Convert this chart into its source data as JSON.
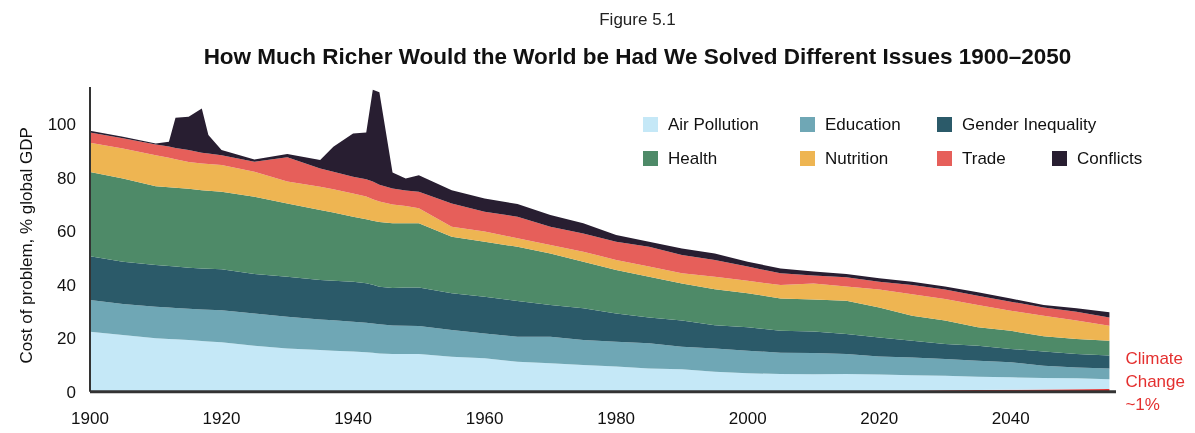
{
  "chart_data": {
    "type": "area",
    "stacked": true,
    "subtitle": "Figure 5.1",
    "title": "How Much Richer Would the World be Had We Solved Different Issues 1900–2050",
    "ylabel": "Cost of problem, % global GDP",
    "x": [
      1900,
      1905,
      1910,
      1912,
      1913,
      1915,
      1917,
      1918,
      1920,
      1925,
      1930,
      1935,
      1937,
      1940,
      1942,
      1943,
      1944,
      1946,
      1948,
      1950,
      1955,
      1960,
      1965,
      1970,
      1975,
      1980,
      1985,
      1990,
      1995,
      2000,
      2005,
      2010,
      2015,
      2020,
      2025,
      2030,
      2035,
      2040,
      2045,
      2050,
      2055
    ],
    "series": [
      {
        "color": "#e4302f",
        "values": [
          0,
          0,
          0,
          0,
          0,
          0,
          0,
          0,
          0,
          0,
          0,
          0,
          0,
          0,
          0,
          0,
          0,
          0,
          0,
          0,
          0,
          0,
          0,
          0,
          0,
          0,
          0,
          0,
          0,
          0,
          0,
          0,
          0.2,
          0.3,
          0.4,
          0.5,
          0.6,
          0.7,
          0.8,
          0.9,
          1.0
        ]
      },
      {
        "name": "Air Pollution",
        "color": "#c5e8f7",
        "values": [
          22.4,
          21.2,
          20.0,
          19.7,
          19.6,
          19.3,
          19.0,
          18.8,
          18.5,
          17.2,
          16.2,
          15.6,
          15.3,
          15.0,
          14.8,
          14.6,
          14.3,
          14.1,
          14.1,
          14.1,
          13.1,
          12.5,
          11.2,
          10.6,
          10.0,
          9.4,
          8.7,
          8.4,
          7.5,
          6.9,
          6.6,
          6.5,
          6.4,
          6.1,
          5.8,
          5.5,
          5.0,
          4.7,
          4.3,
          4.1,
          3.7
        ]
      },
      {
        "name": "Education",
        "color": "#6fa7b5",
        "values": [
          11.9,
          11.6,
          11.8,
          11.8,
          11.7,
          11.7,
          11.8,
          11.9,
          12.0,
          12.1,
          11.8,
          11.4,
          11.4,
          11.2,
          11.0,
          10.9,
          10.9,
          10.7,
          10.6,
          10.5,
          10.0,
          9.3,
          9.4,
          10.0,
          9.3,
          9.3,
          9.4,
          8.4,
          8.7,
          8.4,
          8.0,
          8.0,
          7.5,
          6.8,
          6.6,
          6.2,
          6.0,
          5.6,
          4.6,
          4.1,
          4.0
        ]
      },
      {
        "name": "Gender Inequality",
        "color": "#2b5a69",
        "values": [
          16.4,
          15.8,
          15.6,
          15.5,
          15.5,
          15.4,
          15.3,
          15.3,
          15.3,
          14.7,
          15.0,
          14.8,
          14.8,
          14.9,
          14.8,
          14.5,
          14.1,
          14.0,
          14.3,
          14.4,
          13.7,
          13.7,
          13.3,
          11.8,
          11.9,
          10.6,
          9.7,
          9.8,
          8.7,
          8.8,
          8.2,
          8.0,
          7.5,
          7.1,
          6.3,
          5.6,
          5.6,
          5.0,
          5.3,
          5.0,
          4.8
        ]
      },
      {
        "name": "Health",
        "color": "#4e8a68",
        "values": [
          31.5,
          31.2,
          29.5,
          29.5,
          29.5,
          29.5,
          29.3,
          29.2,
          29.0,
          28.9,
          27.4,
          26.2,
          25.5,
          24.4,
          23.9,
          24.0,
          24.2,
          24.2,
          24.0,
          24.0,
          21.2,
          20.6,
          20.3,
          19.3,
          17.4,
          16.2,
          15.2,
          13.9,
          13.4,
          12.7,
          12.1,
          12.0,
          12.4,
          11.2,
          9.3,
          8.8,
          6.9,
          6.8,
          5.7,
          5.6,
          5.6
        ]
      },
      {
        "name": "Nutrition",
        "color": "#eeb552",
        "values": [
          10.9,
          11.2,
          11.6,
          11.0,
          10.7,
          10.0,
          10.0,
          10.0,
          10.0,
          9.4,
          8.2,
          8.7,
          8.7,
          8.7,
          8.5,
          8.0,
          7.7,
          7.0,
          6.5,
          5.6,
          3.7,
          3.8,
          3.2,
          3.2,
          3.8,
          3.8,
          3.8,
          3.8,
          4.7,
          4.7,
          5.0,
          6.0,
          5.4,
          6.7,
          8.1,
          8.1,
          8.3,
          7.5,
          7.7,
          6.9,
          5.6
        ]
      },
      {
        "name": "Trade",
        "color": "#e65f5a",
        "values": [
          3.9,
          3.8,
          4.0,
          4.2,
          4.2,
          4.5,
          4.0,
          3.9,
          3.7,
          3.7,
          9.1,
          6.8,
          6.6,
          6.2,
          6.5,
          6.6,
          6.2,
          6.0,
          5.8,
          6.2,
          8.7,
          7.4,
          8.1,
          6.8,
          6.8,
          6.8,
          7.4,
          6.8,
          6.3,
          5.3,
          4.4,
          3.0,
          3.4,
          2.9,
          3.4,
          3.5,
          3.5,
          3.4,
          3.1,
          3.3,
          3.1
        ]
      },
      {
        "name": "Conflicts",
        "color": "#281e31",
        "values": [
          0.6,
          0.6,
          0.4,
          1.8,
          11.3,
          12.5,
          16.6,
          6.9,
          1.9,
          0.9,
          1.2,
          3.2,
          9.3,
          16.2,
          17.5,
          34.4,
          34.6,
          6.0,
          4.5,
          6.2,
          5.0,
          5.0,
          4.7,
          4.4,
          3.8,
          2.5,
          1.9,
          2.5,
          2.4,
          1.8,
          1.8,
          1.5,
          1.2,
          1.3,
          1.2,
          1.2,
          1.3,
          1.2,
          0.9,
          1.3,
          1.9
        ]
      }
    ],
    "xlim": [
      1900,
      2056
    ],
    "ylim": [
      0,
      114
    ],
    "xticks": [
      1900,
      1920,
      1940,
      1960,
      1980,
      2000,
      2020,
      2040
    ],
    "yticks": [
      0,
      20,
      40,
      60,
      80,
      100
    ],
    "legend": "top right",
    "annotations": [
      {
        "text": "Climate Change ~1%",
        "x": 2055,
        "y": 1.0
      }
    ]
  }
}
